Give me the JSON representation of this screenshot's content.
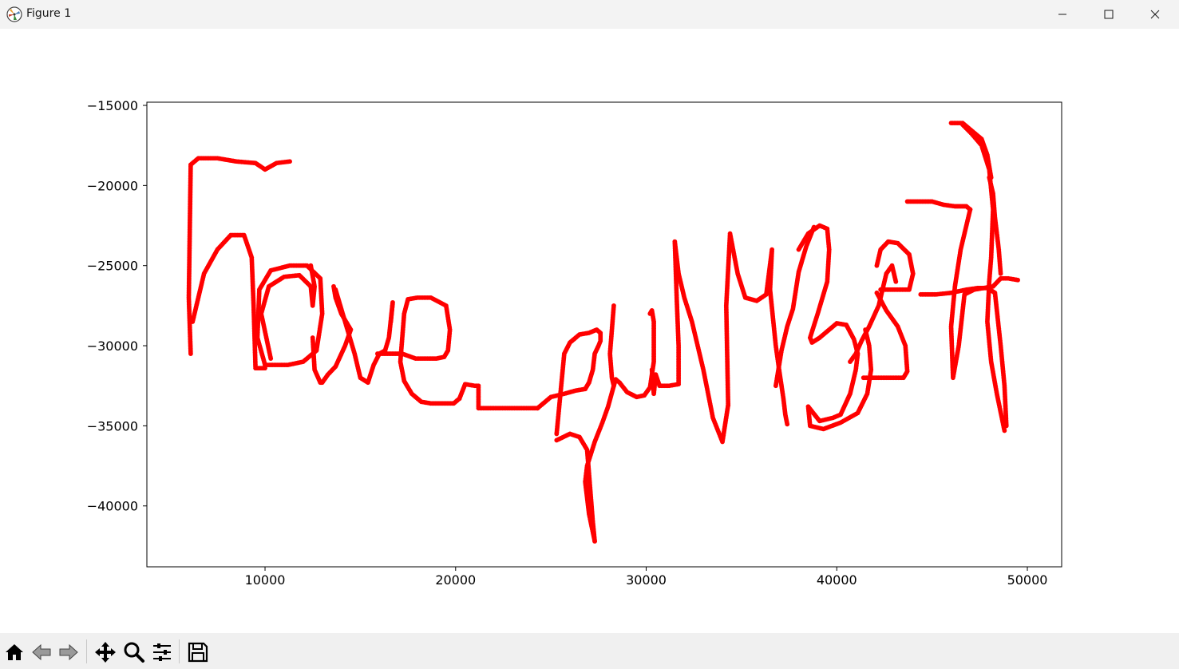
{
  "window": {
    "title": "Figure 1",
    "controls": [
      "minimize",
      "maximize",
      "close"
    ]
  },
  "toolbar": {
    "buttons": [
      {
        "name": "home",
        "icon": "home-icon"
      },
      {
        "name": "back",
        "icon": "arrow-left-icon"
      },
      {
        "name": "forward",
        "icon": "arrow-right-icon"
      },
      {
        "name": "pan",
        "icon": "move-icon"
      },
      {
        "name": "zoom",
        "icon": "magnifier-icon"
      },
      {
        "name": "configure-subplots",
        "icon": "sliders-icon"
      },
      {
        "name": "save",
        "icon": "floppy-icon"
      }
    ]
  },
  "chart_data": {
    "type": "scatter",
    "title": "",
    "xlabel": "",
    "ylabel": "",
    "xlim": [
      3800,
      51800
    ],
    "ylim": [
      -43800,
      -14800
    ],
    "xticks": [
      10000,
      20000,
      30000,
      40000,
      50000
    ],
    "xtick_labels": [
      "10000",
      "20000",
      "30000",
      "40000",
      "50000"
    ],
    "yticks": [
      -15000,
      -20000,
      -25000,
      -30000,
      -35000,
      -40000
    ],
    "ytick_labels": [
      "−15000",
      "−20000",
      "−25000",
      "−30000",
      "−35000",
      "−40000"
    ],
    "grid": false,
    "marker_color": "#ff0000",
    "series": [
      {
        "x": [
          6100,
          6000,
          6100,
          6500,
          7500,
          8500,
          9500,
          10000,
          10600,
          11300
        ],
        "y": [
          -30500,
          -27000,
          -18700,
          -18300,
          -18300,
          -18500,
          -18600,
          -19000,
          -18600,
          -18500
        ]
      },
      {
        "x": [
          6200,
          6800,
          7500,
          8200,
          8900,
          9300,
          9400,
          9500,
          10000
        ],
        "y": [
          -28500,
          -25500,
          -24000,
          -23100,
          -23100,
          -24500,
          -27500,
          -31400,
          -31400
        ]
      },
      {
        "x": [
          10000,
          9600,
          9700,
          10300,
          11300,
          12200,
          12900,
          13000,
          12700,
          12000,
          11200,
          10400,
          10000
        ],
        "y": [
          -31200,
          -29500,
          -26500,
          -25300,
          -25000,
          -25000,
          -25800,
          -28000,
          -30300,
          -31000,
          -31200,
          -31200,
          -31200
        ]
      },
      {
        "x": [
          10300,
          9800,
          10200,
          11000,
          11800,
          12400,
          12500,
          12600,
          12400
        ],
        "y": [
          -30800,
          -28000,
          -26300,
          -25700,
          -25600,
          -26300,
          -27500,
          -26300,
          -25000
        ]
      },
      {
        "x": [
          12500,
          12600,
          12900,
          13000,
          13300,
          13700,
          14200,
          14500,
          14000,
          13700,
          13600
        ],
        "y": [
          -29500,
          -31500,
          -32300,
          -32300,
          -31800,
          -31300,
          -30000,
          -29000,
          -28000,
          -27000,
          -26300
        ]
      },
      {
        "x": [
          13700,
          14200,
          14700,
          15000,
          15400,
          15700,
          16000,
          16300,
          16500,
          16700,
          16600
        ],
        "y": [
          -26500,
          -28500,
          -30500,
          -32000,
          -32300,
          -31200,
          -30500,
          -30300,
          -29500,
          -27300,
          -28500
        ]
      },
      {
        "x": [
          15900,
          16600,
          17200,
          17900,
          18600,
          19000,
          19400,
          19600,
          19700,
          19500,
          18700,
          18000,
          17500,
          17300,
          17200,
          17100,
          17300,
          17700,
          18200,
          18700,
          19300,
          19900,
          20200
        ],
        "y": [
          -30500,
          -30500,
          -30500,
          -30800,
          -30800,
          -30800,
          -30700,
          -30300,
          -29000,
          -27500,
          -27000,
          -27000,
          -27100,
          -28000,
          -29500,
          -31000,
          -32200,
          -33000,
          -33500,
          -33600,
          -33600,
          -33600,
          -33300
        ]
      },
      {
        "x": [
          20200,
          20500,
          21000,
          21200,
          21200,
          22000,
          23000,
          24000,
          24300
        ],
        "y": [
          -33300,
          -32400,
          -32500,
          -32500,
          -33900,
          -33900,
          -33900,
          -33900,
          -33900
        ]
      },
      {
        "x": [
          24300,
          25000,
          25700,
          26300,
          26800
        ],
        "y": [
          -33900,
          -33200,
          -33000,
          -32800,
          -32700
        ]
      },
      {
        "x": [
          26800,
          27000,
          27200,
          27300,
          27500,
          27600,
          27600,
          27400,
          27000,
          26500,
          26000,
          25700,
          25300
        ],
        "y": [
          -32700,
          -32300,
          -31500,
          -30500,
          -30000,
          -29700,
          -29200,
          -29000,
          -29200,
          -29300,
          -29800,
          -30500,
          -35500
        ]
      },
      {
        "x": [
          25300,
          26000,
          26500,
          26900,
          27000,
          27100,
          27200,
          27300
        ],
        "y": [
          -35900,
          -35500,
          -35700,
          -36500,
          -38000,
          -39500,
          -41000,
          -42200
        ]
      },
      {
        "x": [
          27300,
          27000,
          26800,
          26900,
          27300,
          27700,
          28000,
          28300
        ],
        "y": [
          -42200,
          -40500,
          -38500,
          -37500,
          -36000,
          -34800,
          -33800,
          -32500
        ]
      },
      {
        "x": [
          28300,
          28100,
          28200,
          28300,
          28400,
          28600,
          29000,
          29500,
          29900,
          30200,
          30400,
          30400,
          30300,
          30200
        ],
        "y": [
          -27500,
          -30500,
          -32000,
          -32500,
          -32100,
          -32300,
          -32900,
          -33200,
          -33100,
          -32600,
          -31000,
          -28500,
          -27800,
          -28000
        ]
      },
      {
        "x": [
          30300,
          30400,
          30500,
          30700,
          31200,
          31700,
          31700,
          31600,
          31500,
          31700,
          32000,
          32400,
          33000,
          33500,
          34000,
          34300
        ],
        "y": [
          -31500,
          -33000,
          -31800,
          -32500,
          -32500,
          -32400,
          -30000,
          -27000,
          -23500,
          -25500,
          -27000,
          -28500,
          -31500,
          -34500,
          -36000,
          -33700
        ]
      },
      {
        "x": [
          34300,
          34200,
          34400,
          34800,
          35200,
          35800,
          36300,
          36600,
          36500,
          36800,
          37000,
          37200,
          37300,
          37400
        ],
        "y": [
          -33700,
          -27500,
          -23000,
          -25500,
          -27000,
          -27200,
          -26800,
          -24000,
          -26500,
          -30000,
          -31700,
          -33300,
          -34300,
          -34900
        ]
      },
      {
        "x": [
          36800,
          37100,
          37400,
          37700,
          38000,
          38400,
          38800
        ],
        "y": [
          -32500,
          -30300,
          -28800,
          -27700,
          -25400,
          -23800,
          -22600
        ]
      },
      {
        "x": [
          38000,
          38500,
          39100,
          39500,
          39600,
          39500,
          39000,
          38600,
          38700,
          39100,
          39600,
          40000,
          40500,
          40900,
          41100,
          41000,
          40700,
          40200,
          39800,
          39100,
          38500,
          38600,
          39300,
          40200,
          41100,
          41600,
          41800,
          41700,
          41500
        ],
        "y": [
          -24000,
          -23000,
          -22500,
          -22700,
          -24000,
          -26000,
          -28000,
          -29500,
          -29800,
          -29500,
          -29000,
          -28600,
          -28700,
          -29600,
          -30500,
          -31500,
          -33000,
          -34300,
          -34500,
          -34700,
          -33800,
          -35000,
          -35200,
          -34800,
          -34200,
          -33000,
          -31500,
          -30000,
          -29000
        ]
      },
      {
        "x": [
          40700,
          41000,
          41300,
          41700,
          42200,
          42600,
          42900,
          43100
        ],
        "y": [
          -31000,
          -30500,
          -29700,
          -28800,
          -27500,
          -25500,
          -25000,
          -26000
        ]
      },
      {
        "x": [
          41400,
          42000,
          42800,
          43500,
          43700,
          43600,
          43200,
          42600,
          42100
        ],
        "y": [
          -32000,
          -32000,
          -32000,
          -32000,
          -31600,
          -30000,
          -28800,
          -27800,
          -26700
        ]
      },
      {
        "x": [
          42300,
          43100,
          43800,
          44000,
          43800,
          43200,
          42700,
          42300,
          42100
        ],
        "y": [
          -26500,
          -26500,
          -26500,
          -25500,
          -24300,
          -23600,
          -23500,
          -24000,
          -25000
        ]
      },
      {
        "x": [
          43700,
          44400,
          45000,
          45600,
          46200,
          46500,
          46800,
          47000
        ],
        "y": [
          -21000,
          -21000,
          -21000,
          -21200,
          -21300,
          -21300,
          -21300,
          -21500
        ]
      },
      {
        "x": [
          47000,
          46500,
          46200,
          46000,
          46100,
          46400,
          46700,
          47200,
          47700,
          48200,
          48600,
          49000,
          49500
        ],
        "y": [
          -21500,
          -24000,
          -26300,
          -28800,
          -32000,
          -30000,
          -26800,
          -26500,
          -26400,
          -26300,
          -25800,
          -25800,
          -25900
        ]
      },
      {
        "x": [
          44400,
          45200,
          46000,
          46800,
          47400,
          47900,
          48300,
          48600,
          48800,
          48900
        ],
        "y": [
          -26800,
          -26800,
          -26700,
          -26500,
          -26400,
          -26400,
          -26700,
          -30000,
          -32500,
          -35000
        ]
      },
      {
        "x": [
          48800,
          48400,
          48100,
          47900,
          48000,
          48100,
          48200,
          48000,
          47600,
          47100,
          46600
        ],
        "y": [
          -35300,
          -33000,
          -31000,
          -28500,
          -26000,
          -24500,
          -21500,
          -19000,
          -17500,
          -16800,
          -16200
        ]
      },
      {
        "x": [
          46000,
          46600,
          47000,
          47600,
          47900,
          48100
        ],
        "y": [
          -16100,
          -16100,
          -16500,
          -17100,
          -18100,
          -19500
        ]
      },
      {
        "x": [
          48000,
          48200,
          48300,
          48500,
          48600
        ],
        "y": [
          -19500,
          -20500,
          -22000,
          -24000,
          -25500
        ]
      }
    ]
  }
}
